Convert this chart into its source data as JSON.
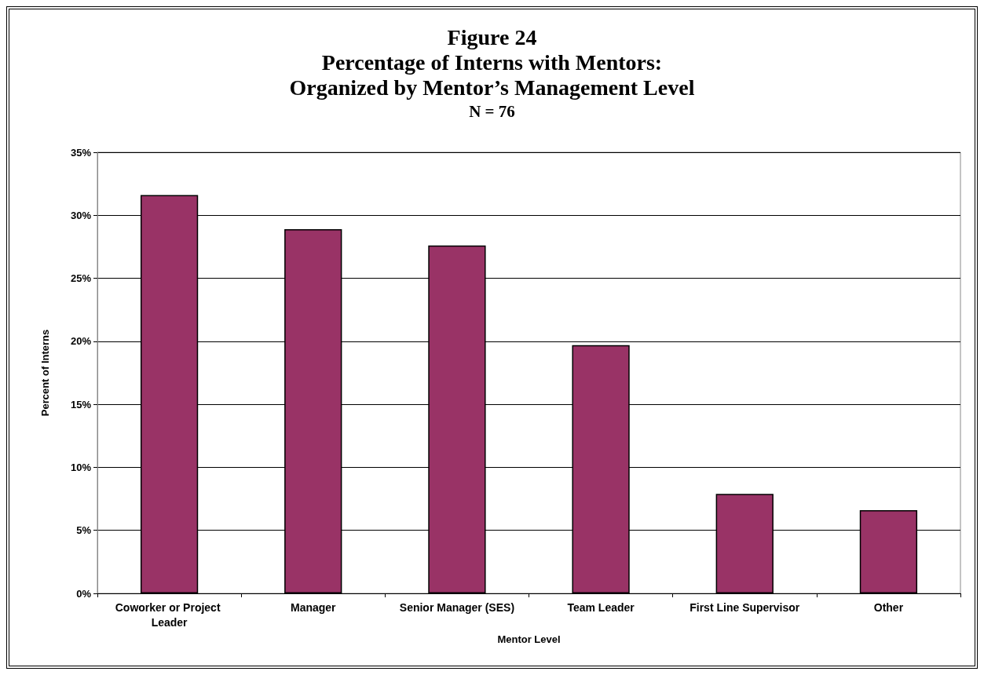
{
  "chart_data": {
    "type": "bar",
    "title": "Figure 24\nPercentage of Interns with Mentors:\nOrganized by Mentor’s Management Level",
    "subtitle": "N = 76",
    "xlabel": "Mentor Level",
    "ylabel": "Percent of Interns",
    "categories": [
      "Coworker or Project Leader",
      "Manager",
      "Senior Manager (SES)",
      "Team Leader",
      "First Line Supervisor",
      "Other"
    ],
    "values": [
      31.6,
      28.9,
      27.6,
      19.7,
      7.9,
      6.6
    ],
    "color": "#993366",
    "ylim": [
      0,
      35
    ],
    "yticks": [
      {
        "value": 0,
        "label": "0%"
      },
      {
        "value": 5,
        "label": "5%"
      },
      {
        "value": 10,
        "label": "10%"
      },
      {
        "value": 15,
        "label": "15%"
      },
      {
        "value": 20,
        "label": "20%"
      },
      {
        "value": 25,
        "label": "25%"
      },
      {
        "value": 30,
        "label": "30%"
      },
      {
        "value": 35,
        "label": "35%"
      }
    ],
    "grid": "y"
  }
}
